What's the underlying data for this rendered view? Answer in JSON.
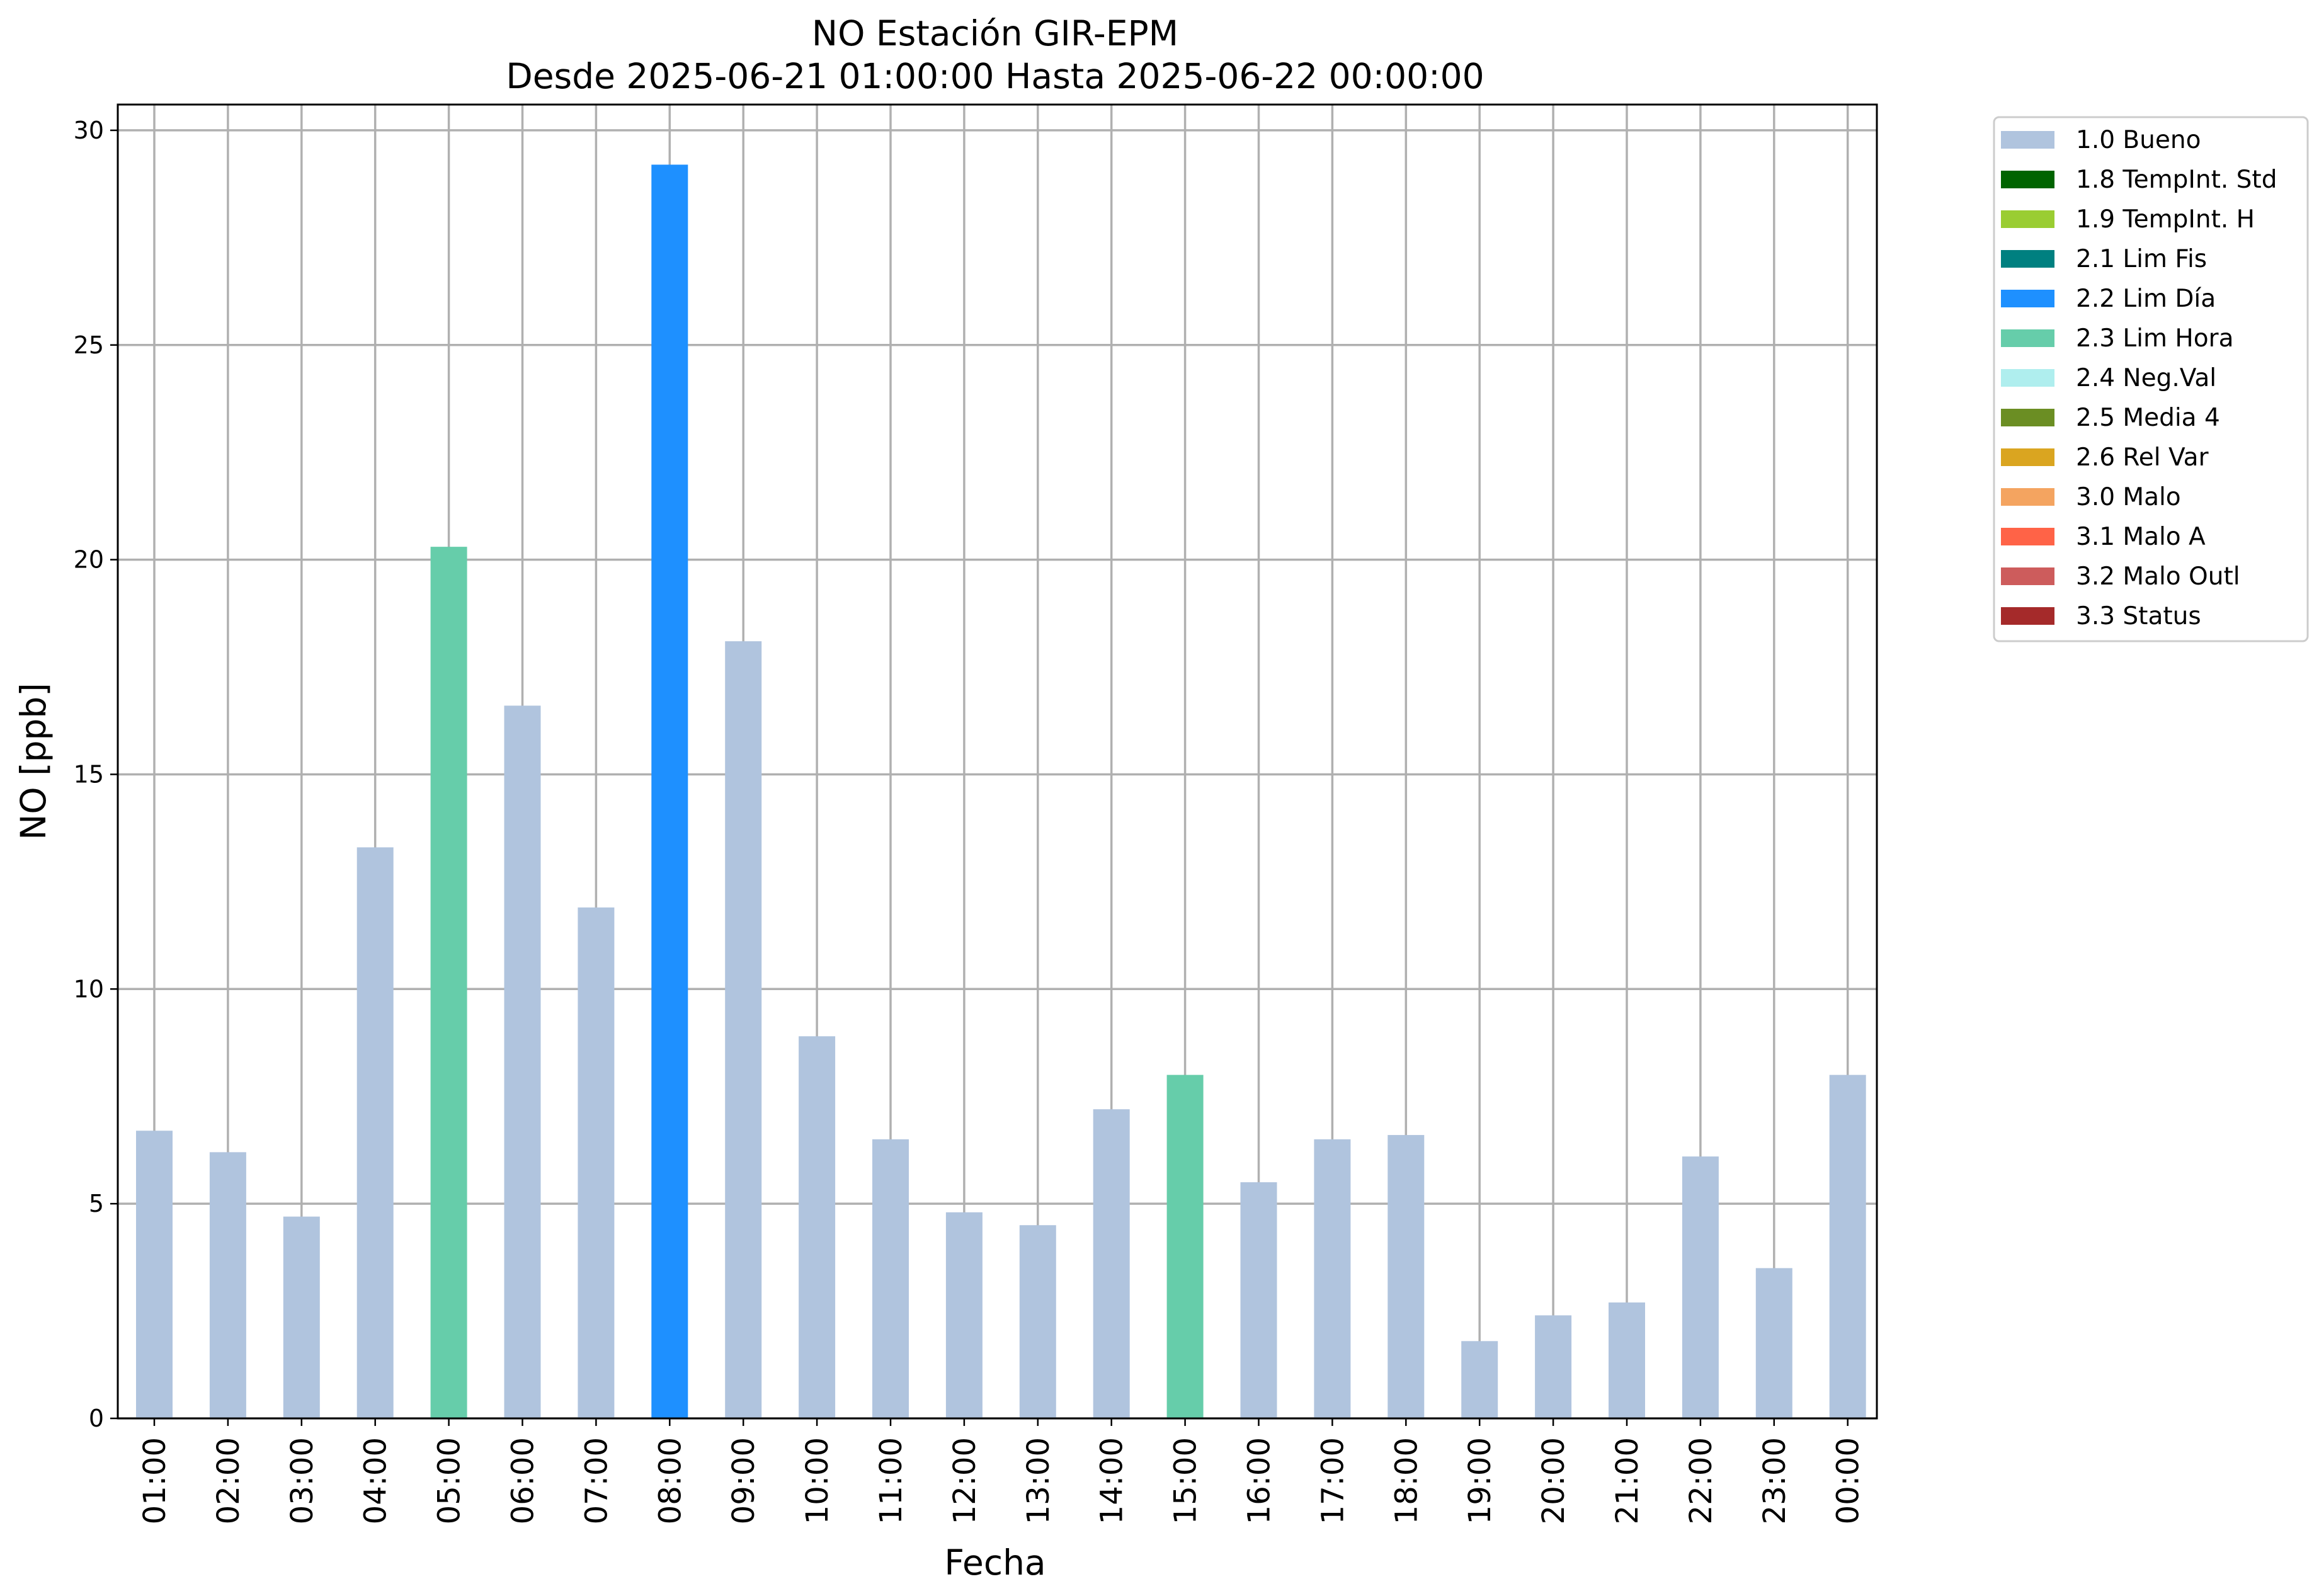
{
  "chart_data": {
    "type": "bar",
    "title_line1": "NO Estación GIR-EPM",
    "title_line2": "Desde 2025-06-21 01:00:00 Hasta 2025-06-22 00:00:00",
    "xlabel": "Fecha",
    "ylabel": "NO [ppb]",
    "ylim": [
      0,
      30.6
    ],
    "yticks": [
      0,
      5,
      10,
      15,
      20,
      25,
      30
    ],
    "grid": true,
    "legend_position": "outside-top-right",
    "categories": [
      "01:00",
      "02:00",
      "03:00",
      "04:00",
      "05:00",
      "06:00",
      "07:00",
      "08:00",
      "09:00",
      "10:00",
      "11:00",
      "12:00",
      "13:00",
      "14:00",
      "15:00",
      "16:00",
      "17:00",
      "18:00",
      "19:00",
      "20:00",
      "21:00",
      "22:00",
      "23:00",
      "00:00"
    ],
    "values": [
      6.7,
      6.2,
      4.7,
      13.3,
      20.3,
      16.6,
      11.9,
      29.2,
      18.1,
      8.9,
      6.5,
      4.8,
      4.5,
      7.2,
      8.0,
      5.5,
      6.5,
      6.6,
      1.8,
      2.4,
      2.7,
      6.1,
      3.5,
      8.0
    ],
    "flags": [
      "1.0 Bueno",
      "1.0 Bueno",
      "1.0 Bueno",
      "1.0 Bueno",
      "2.3 Lim Hora",
      "1.0 Bueno",
      "1.0 Bueno",
      "2.2 Lim Día",
      "1.0 Bueno",
      "1.0 Bueno",
      "1.0 Bueno",
      "1.0 Bueno",
      "1.0 Bueno",
      "1.0 Bueno",
      "2.3 Lim Hora",
      "1.0 Bueno",
      "1.0 Bueno",
      "1.0 Bueno",
      "1.0 Bueno",
      "1.0 Bueno",
      "1.0 Bueno",
      "1.0 Bueno",
      "1.0 Bueno",
      "1.0 Bueno"
    ],
    "legend": [
      {
        "name": "1.0 Bueno",
        "color": "#b0c4de"
      },
      {
        "name": "1.8 TempInt. Std",
        "color": "#006400"
      },
      {
        "name": "1.9 TempInt. H",
        "color": "#9acd32"
      },
      {
        "name": "2.1 Lim Fis",
        "color": "#008080"
      },
      {
        "name": "2.2 Lim Día",
        "color": "#1e90ff"
      },
      {
        "name": "2.3 Lim Hora",
        "color": "#66cdaa"
      },
      {
        "name": "2.4 Neg.Val",
        "color": "#afeeee"
      },
      {
        "name": "2.5 Media 4",
        "color": "#6b8e23"
      },
      {
        "name": "2.6 Rel Var",
        "color": "#daa520"
      },
      {
        "name": "3.0 Malo",
        "color": "#f4a460"
      },
      {
        "name": "3.1 Malo A",
        "color": "#ff6347"
      },
      {
        "name": "3.2 Malo Outl",
        "color": "#cd5c5c"
      },
      {
        "name": "3.3 Status",
        "color": "#a52a2a"
      }
    ]
  }
}
